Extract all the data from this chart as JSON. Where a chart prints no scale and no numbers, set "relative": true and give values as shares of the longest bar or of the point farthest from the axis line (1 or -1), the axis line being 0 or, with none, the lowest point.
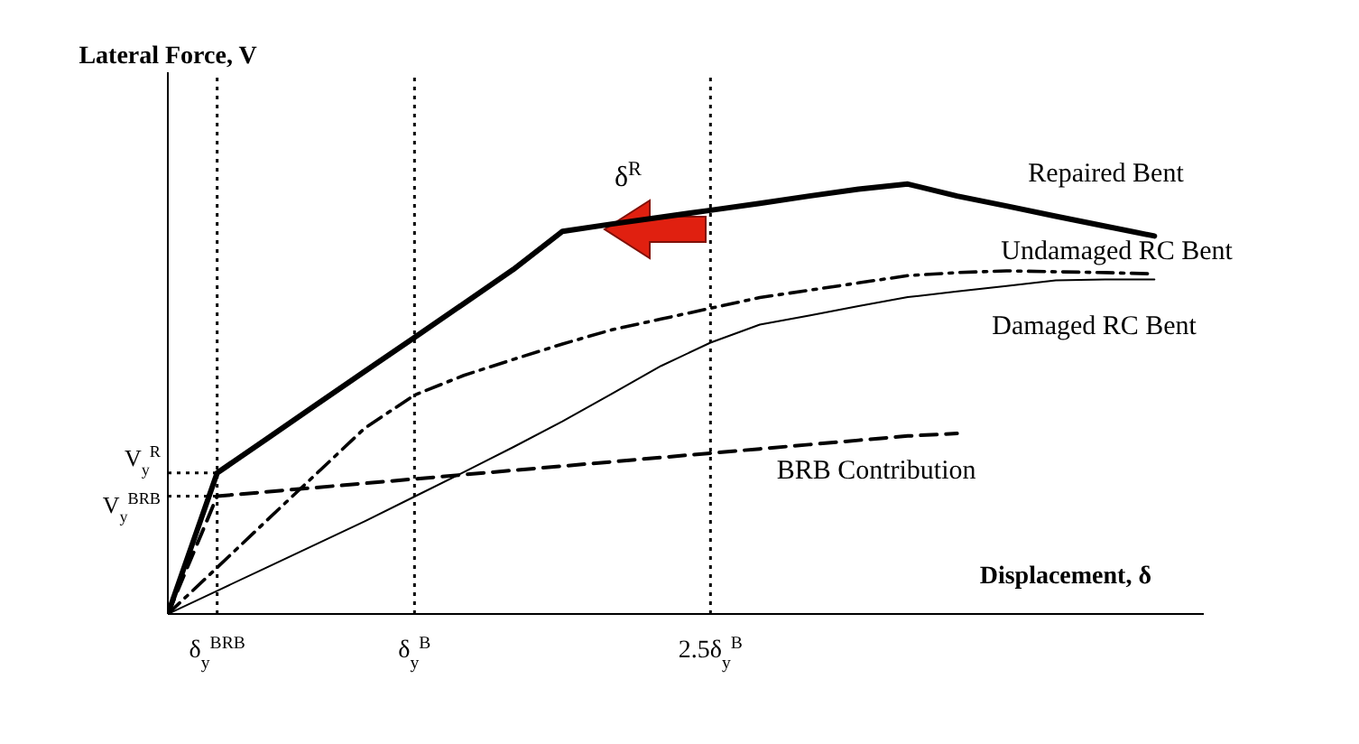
{
  "chart_data": {
    "type": "line",
    "xlabel": "Displacement, δ",
    "ylabel": "Lateral Force, V",
    "relative": true,
    "categories": [
      null,
      "δ$_{y}$$^{BRB}$",
      null,
      null,
      null,
      "δ$_{y}$$^{B}$",
      null,
      null,
      null,
      null,
      null,
      "2.5δ$_{y}$$^{B}$",
      null,
      null,
      null,
      null,
      null,
      null,
      null,
      null,
      null
    ],
    "series": [
      {
        "name": "Repaired Bent",
        "color": "#000000",
        "line_style": "solid",
        "values": [
          0,
          0.328,
          0.407,
          0.486,
          0.565,
          0.643,
          0.722,
          0.801,
          0.89,
          0.907,
          0.923,
          0.939,
          0.955,
          0.972,
          0.988,
          1,
          0.972,
          0.949,
          0.925,
          0.902,
          0.879
        ]
      },
      {
        "name": "Undamaged RC Bent",
        "color": "#000000",
        "line_style": "dashdot",
        "values": [
          0,
          0.108,
          0.217,
          0.325,
          0.433,
          0.509,
          0.555,
          0.592,
          0.628,
          0.661,
          0.686,
          0.711,
          0.736,
          0.753,
          0.77,
          0.787,
          0.794,
          0.798,
          0.796,
          0.794,
          0.791
        ]
      },
      {
        "name": "Damaged RC Bent",
        "color": "#000000",
        "line_style": "solid",
        "values": [
          0,
          0.054,
          0.108,
          0.162,
          0.216,
          0.273,
          0.33,
          0.388,
          0.448,
          0.512,
          0.577,
          0.631,
          0.673,
          0.694,
          0.716,
          0.737,
          0.75,
          0.763,
          0.776,
          0.778,
          0.778
        ]
      },
      {
        "name": "BRB Contribution",
        "color": "#000000",
        "line_style": "dashed",
        "values": [
          0,
          0.274,
          0.284,
          0.294,
          0.304,
          0.314,
          0.324,
          0.334,
          0.344,
          0.354,
          0.364,
          0.374,
          0.384,
          0.394,
          0.404,
          0.414,
          0.42,
          null,
          null,
          null,
          null
        ]
      }
    ],
    "ref_lines": [
      {
        "axis": "y",
        "value": 0.328,
        "label": "V$_{y}$$^{R}$",
        "line_style": "dotted",
        "color": "#000000"
      },
      {
        "axis": "y",
        "value": 0.274,
        "label": "V$_{y}$$^{BRB}$",
        "line_style": "dotted",
        "color": "#000000"
      },
      {
        "axis": "x",
        "value": "δ$_{y}$$^{BRB}$",
        "line_style": "dotted",
        "color": "#000000"
      },
      {
        "axis": "x",
        "value": "δ$_{y}$$^{B}$",
        "line_style": "dotted",
        "color": "#000000"
      },
      {
        "axis": "x",
        "value": "2.5δ$_{y}$$^{B}$",
        "line_style": "dotted",
        "color": "#000000"
      }
    ],
    "annotations": [
      "δ$^{R}$"
    ],
    "legend": false,
    "marker": "none"
  }
}
